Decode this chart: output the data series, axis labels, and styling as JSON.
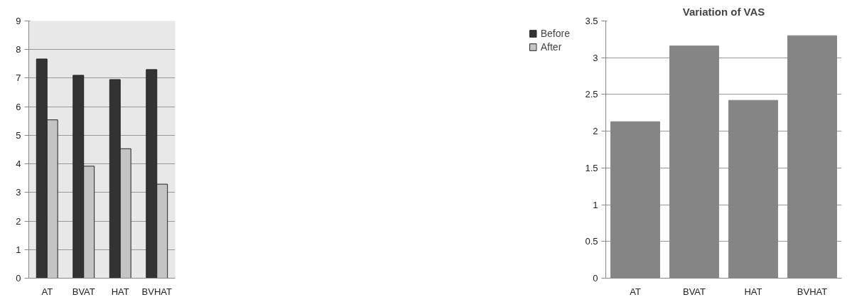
{
  "chart_data": [
    {
      "type": "bar",
      "categories": [
        "AT",
        "BVAT",
        "HAT",
        "BVHAT"
      ],
      "series": [
        {
          "name": "Before",
          "color": "#333333",
          "values": [
            7.67,
            7.1,
            6.95,
            7.3
          ]
        },
        {
          "name": "After",
          "color": "#c4c4c4",
          "values": [
            5.54,
            3.92,
            4.53,
            3.29
          ]
        }
      ],
      "ylim": [
        0,
        9
      ],
      "yticks": [
        0,
        1,
        2,
        3,
        4,
        5,
        6,
        7,
        8,
        9
      ],
      "grid": "y",
      "legend": "right"
    },
    {
      "type": "bar",
      "title": "Variation of VAS",
      "categories": [
        "AT",
        "BVAT",
        "HAT",
        "BVHAT"
      ],
      "values": [
        2.13,
        3.16,
        2.42,
        3.3
      ],
      "color": "#858585",
      "ylim": [
        0,
        3.5
      ],
      "yticks": [
        0,
        0.5,
        1,
        1.5,
        2,
        2.5,
        3,
        3.5
      ],
      "grid": "y"
    }
  ]
}
